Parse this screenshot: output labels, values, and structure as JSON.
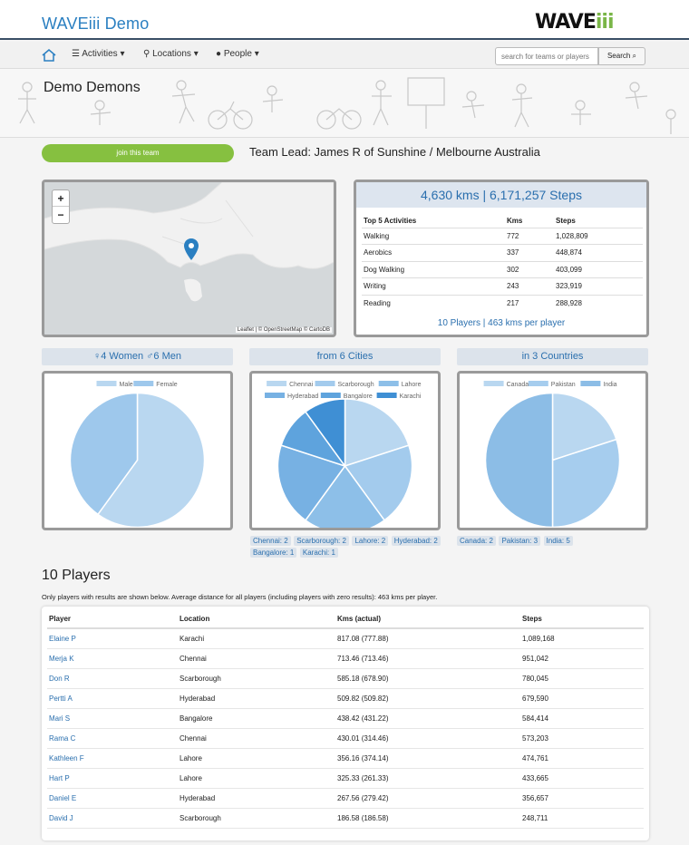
{
  "header": {
    "title": "WAVEiii Demo",
    "logo_main": "WAVE",
    "logo_accent": "iii"
  },
  "nav": {
    "activities": "Activities",
    "locations": "Locations",
    "people": "People",
    "search_placeholder": "search for teams or players",
    "search_button": "Search"
  },
  "team": {
    "name": "Demo Demons",
    "join": "join this team",
    "lead": "Team Lead: James R of Sunshine / Melbourne Australia"
  },
  "map": {
    "zoom_in": "+",
    "zoom_out": "−",
    "attribution": "Leaflet | © OpenStreetMap © CartoDB"
  },
  "stats": {
    "headline": "4,630 kms | 6,171,257 Steps",
    "columns": [
      "Top 5 Activities",
      "Kms",
      "Steps"
    ],
    "rows": [
      [
        "Walking",
        "772",
        "1,028,809"
      ],
      [
        "Aerobics",
        "337",
        "448,874"
      ],
      [
        "Dog Walking",
        "302",
        "403,099"
      ],
      [
        "Writing",
        "243",
        "323,919"
      ],
      [
        "Reading",
        "217",
        "288,928"
      ]
    ],
    "footer": "10 Players | 463 kms per player"
  },
  "panels": {
    "gender_title": "♀4 Women  ♂6 Men",
    "cities_title": "from 6 Cities",
    "countries_title": "in 3 Countries"
  },
  "chart_data": [
    {
      "type": "pie",
      "categories": [
        "Male",
        "Female"
      ],
      "values": [
        6,
        4
      ],
      "colors": [
        "#b9d7f0",
        "#9ec8ec"
      ],
      "legend": "top"
    },
    {
      "type": "pie",
      "categories": [
        "Chennai",
        "Scarborough",
        "Lahore",
        "Hyderabad",
        "Bangalore",
        "Karachi"
      ],
      "values": [
        2,
        2,
        2,
        2,
        1,
        1
      ],
      "colors": [
        "#b9d7f0",
        "#a3cbed",
        "#8dbfe8",
        "#77b1e3",
        "#5ea3dd",
        "#3f8fd4"
      ],
      "legend": "top"
    },
    {
      "type": "pie",
      "categories": [
        "Canada",
        "Pakistan",
        "India"
      ],
      "values": [
        2,
        3,
        5
      ],
      "colors": [
        "#b9d7f0",
        "#a6cdee",
        "#8cbde6"
      ],
      "legend": "top"
    }
  ],
  "city_tags": [
    "Chennai: 2",
    "Scarborough: 2",
    "Lahore: 2",
    "Hyderabad: 2",
    "Bangalore: 1",
    "Karachi: 1"
  ],
  "country_tags": [
    "Canada: 2",
    "Pakistan: 3",
    "India: 5"
  ],
  "players": {
    "title": "10 Players",
    "note": "Only players with results are shown below. Average distance for all players (including players with zero results): 463 kms per player.",
    "columns": [
      "Player",
      "Location",
      "Kms (actual)",
      "Steps"
    ],
    "rows": [
      [
        "Elaine P",
        "Karachi",
        "817.08 (777.88)",
        "1,089,168"
      ],
      [
        "Merja K",
        "Chennai",
        "713.46 (713.46)",
        "951,042"
      ],
      [
        "Don R",
        "Scarborough",
        "585.18 (678.90)",
        "780,045"
      ],
      [
        "Pertti A",
        "Hyderabad",
        "509.82 (509.82)",
        "679,590"
      ],
      [
        "Mari S",
        "Bangalore",
        "438.42 (431.22)",
        "584,414"
      ],
      [
        "Rama C",
        "Chennai",
        "430.01 (314.46)",
        "573,203"
      ],
      [
        "Kathleen F",
        "Lahore",
        "356.16 (374.14)",
        "474,761"
      ],
      [
        "Hart P",
        "Lahore",
        "325.33 (261.33)",
        "433,665"
      ],
      [
        "Daniel E",
        "Hyderabad",
        "267.56 (279.42)",
        "356,657"
      ],
      [
        "David J",
        "Scarborough",
        "186.58 (186.58)",
        "248,711"
      ]
    ]
  }
}
